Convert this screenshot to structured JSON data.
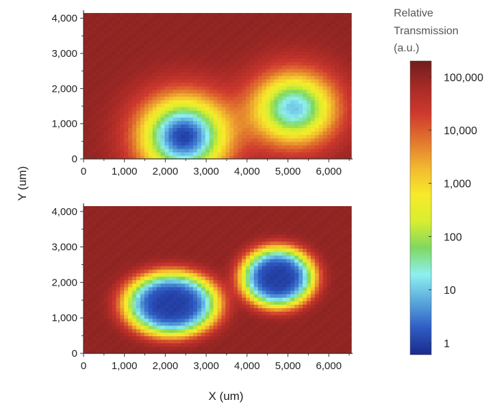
{
  "chart_data": [
    {
      "type": "heatmap",
      "panel": "top",
      "xlabel": "X (um)",
      "ylabel": "Y (um)",
      "xlim": [
        0,
        6550
      ],
      "ylim": [
        0,
        4150
      ],
      "xticks": [
        "0",
        "1,000",
        "2,000",
        "3,000",
        "4,000",
        "5,000",
        "6,000"
      ],
      "yticks": [
        "0",
        "1,000",
        "2,000",
        "3,000",
        "4,000"
      ],
      "background_value": 100000,
      "features": [
        {
          "x": 2450,
          "y": 650,
          "min_value": 1,
          "radius_x": 1050,
          "radius_y": 1100,
          "edge": "smooth"
        },
        {
          "x": 5150,
          "y": 1450,
          "min_value": 10,
          "radius_x": 1000,
          "radius_y": 1000,
          "edge": "smooth"
        }
      ]
    },
    {
      "type": "heatmap",
      "panel": "bottom",
      "xlabel": "X (um)",
      "ylabel": "Y (um)",
      "xlim": [
        0,
        6550
      ],
      "ylim": [
        0,
        4150
      ],
      "xticks": [
        "0",
        "1,000",
        "2,000",
        "3,000",
        "4,000",
        "5,000",
        "6,000"
      ],
      "yticks": [
        "0",
        "1,000",
        "2,000",
        "3,000",
        "4,000"
      ],
      "background_value": 100000,
      "features": [
        {
          "x": 2150,
          "y": 1400,
          "min_value": 1,
          "radius_x": 1150,
          "radius_y": 900,
          "edge": "sharp"
        },
        {
          "x": 4750,
          "y": 2150,
          "min_value": 1,
          "radius_x": 900,
          "radius_y": 850,
          "edge": "sharp"
        }
      ]
    }
  ],
  "axis": {
    "xlabel": "X (um)",
    "ylabel": "Y (um)"
  },
  "colorbar": {
    "title": [
      "Relative",
      "Transmission",
      "(a.u.)"
    ],
    "scale": "log",
    "range": [
      0.6,
      200000
    ],
    "ticks": [
      "100,000",
      "10,000",
      "1,000",
      "100",
      "10",
      "1"
    ],
    "colors": [
      "#1a2a8c",
      "#2f5cc4",
      "#5aa8dc",
      "#8ef0f0",
      "#7fd860",
      "#d8ee30",
      "#f7ea2a",
      "#f2b830",
      "#e2762e",
      "#cf3a2e",
      "#a82a26",
      "#6e1e1e"
    ]
  }
}
